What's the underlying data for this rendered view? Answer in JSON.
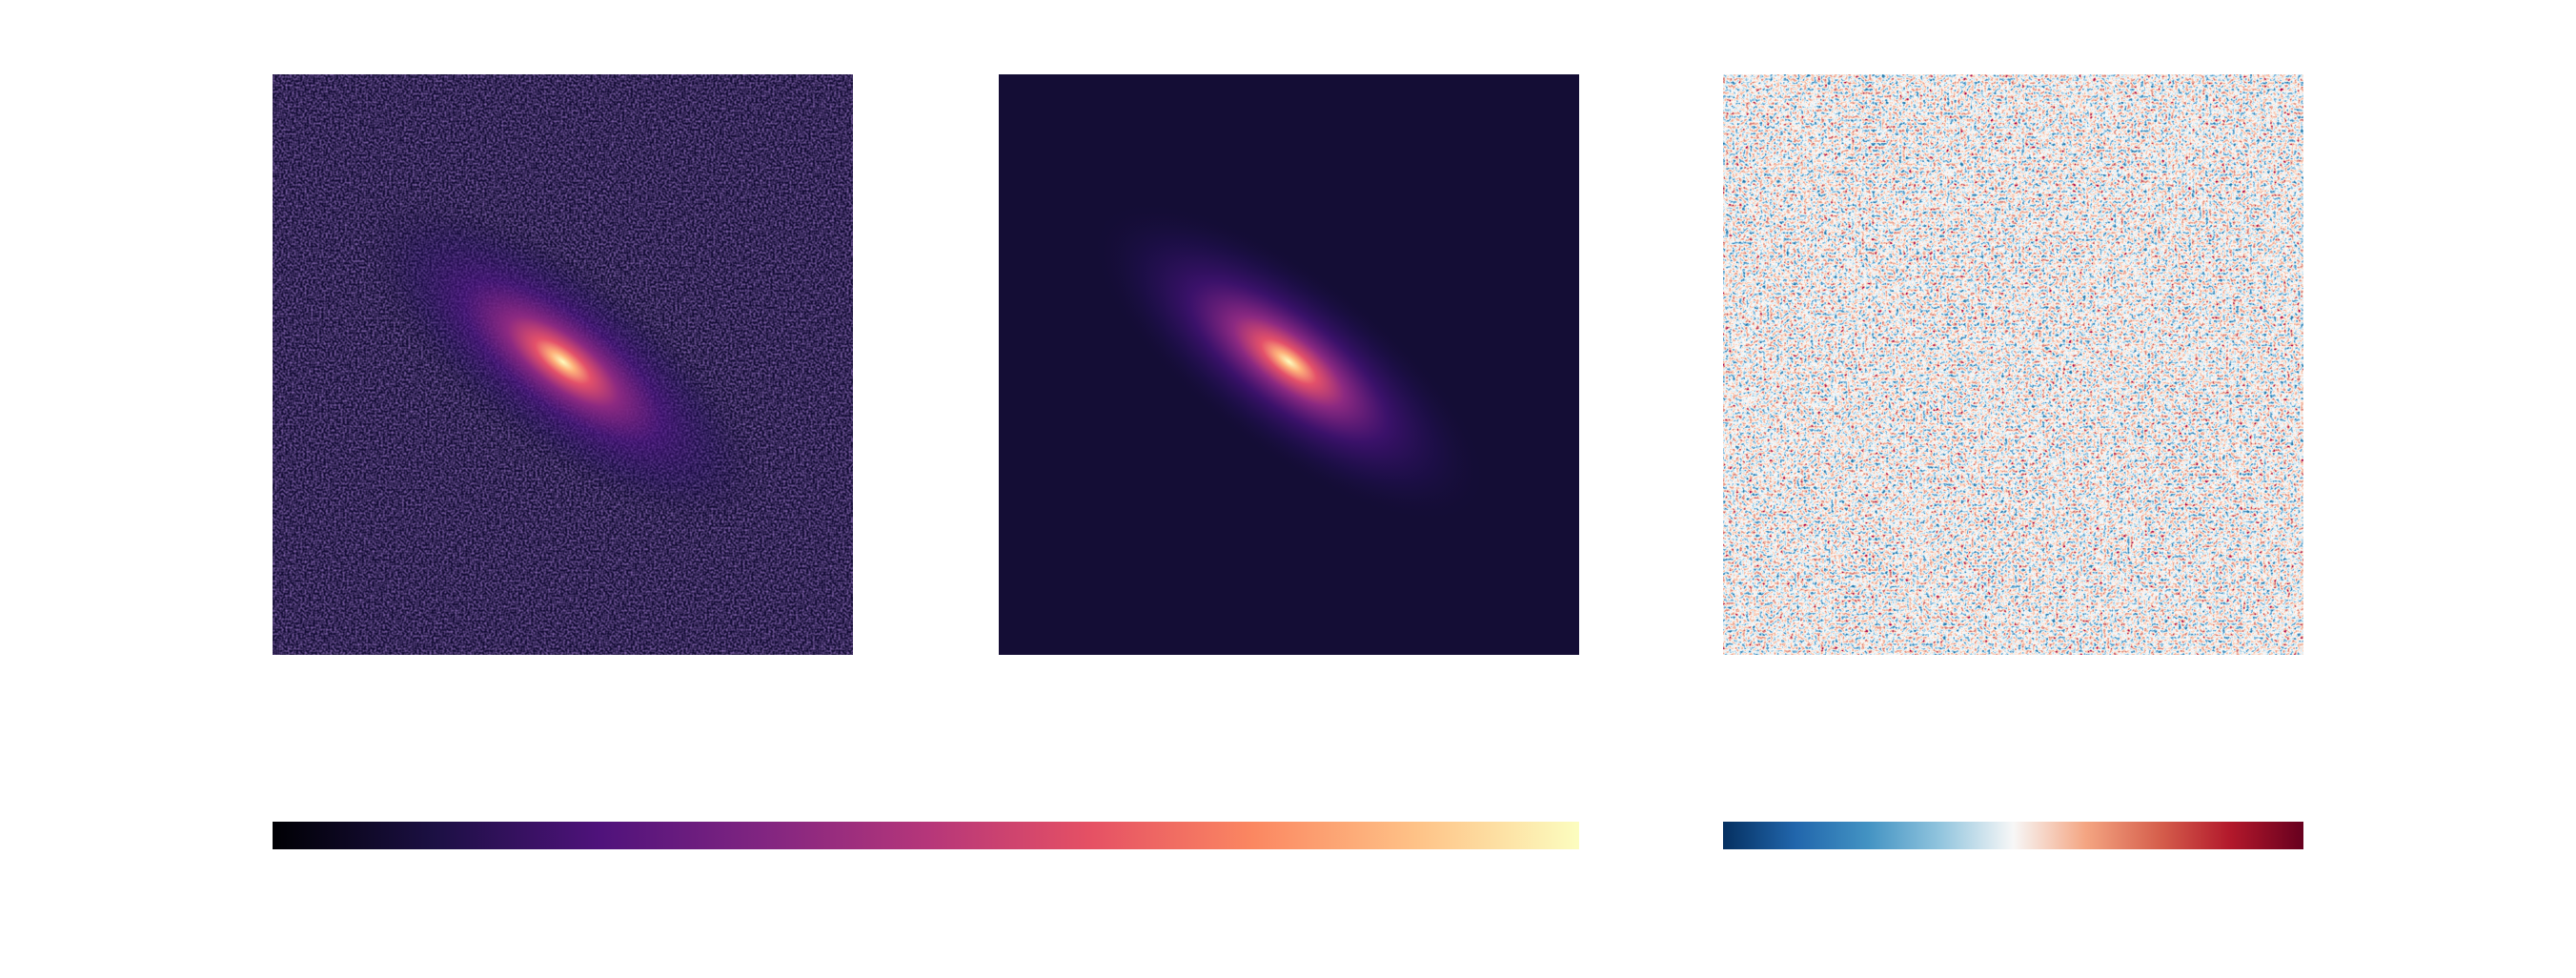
{
  "chart_data": [
    {
      "type": "image",
      "colormap": "magma"
    },
    {
      "type": "image",
      "colormap": "magma"
    },
    {
      "type": "image",
      "colormap": "RdBu_r"
    }
  ]
}
